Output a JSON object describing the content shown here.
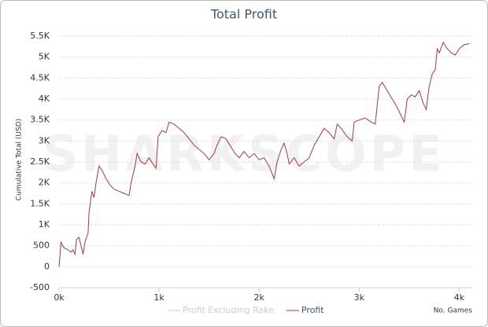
{
  "chart_data": {
    "type": "line",
    "title": "Total Profit",
    "watermark": "SHARKSCOPE",
    "y_label": "Cumulative Total (USD)",
    "x_label": "No. Games",
    "xlim": [
      0,
      4130
    ],
    "ylim": [
      -500,
      5500
    ],
    "xticks": [
      {
        "value": 0,
        "label": "0k"
      },
      {
        "value": 1000,
        "label": "1k"
      },
      {
        "value": 2000,
        "label": "2k"
      },
      {
        "value": 3000,
        "label": "3k"
      },
      {
        "value": 4000,
        "label": "4k"
      }
    ],
    "yticks": [
      -500,
      0,
      500,
      {
        "value": 1000,
        "label": "1K"
      },
      {
        "value": 1500,
        "label": "1.5K"
      },
      {
        "value": 2000,
        "label": "2K"
      },
      {
        "value": 2500,
        "label": "2.5K"
      },
      {
        "value": 3000,
        "label": "3K"
      },
      {
        "value": 3500,
        "label": "3.5K"
      },
      {
        "value": 4000,
        "label": "4K"
      },
      {
        "value": 4500,
        "label": "4.5K"
      },
      {
        "value": 5000,
        "label": "5K"
      },
      {
        "value": 5500,
        "label": "5.5K"
      }
    ],
    "grid": true,
    "x": [
      0,
      20,
      50,
      80,
      120,
      140,
      160,
      175,
      200,
      220,
      240,
      260,
      290,
      300,
      330,
      350,
      370,
      400,
      430,
      470,
      510,
      550,
      600,
      650,
      700,
      720,
      760,
      780,
      820,
      860,
      900,
      940,
      970,
      990,
      1030,
      1070,
      1100,
      1150,
      1200,
      1250,
      1300,
      1350,
      1400,
      1450,
      1500,
      1550,
      1580,
      1620,
      1670,
      1720,
      1760,
      1800,
      1850,
      1900,
      1950,
      2000,
      2050,
      2100,
      2150,
      2180,
      2220,
      2250,
      2280,
      2300,
      2350,
      2400,
      2450,
      2500,
      2550,
      2600,
      2650,
      2700,
      2750,
      2780,
      2820,
      2880,
      2930,
      2950,
      3000,
      3060,
      3120,
      3160,
      3200,
      3230,
      3280,
      3330,
      3380,
      3420,
      3450,
      3480,
      3520,
      3560,
      3600,
      3640,
      3670,
      3700,
      3730,
      3760,
      3780,
      3800,
      3840,
      3880,
      3920,
      3960,
      4000,
      4050,
      4100
    ],
    "series": [
      {
        "name": "Profit Excluding Rake",
        "color": "#cccccc",
        "visible": false
      },
      {
        "name": "Profit",
        "color": "#a33a3a",
        "visible": true,
        "values": [
          0,
          580,
          450,
          420,
          350,
          400,
          300,
          650,
          700,
          500,
          300,
          600,
          800,
          1300,
          1800,
          1650,
          2000,
          2400,
          2300,
          2100,
          1950,
          1850,
          1800,
          1750,
          1700,
          2000,
          2400,
          2700,
          2500,
          2450,
          2600,
          2450,
          2350,
          3100,
          3250,
          3200,
          3450,
          3400,
          3300,
          3200,
          3050,
          2900,
          2800,
          2700,
          2550,
          2700,
          2900,
          3100,
          3050,
          2850,
          2700,
          2600,
          2750,
          2600,
          2700,
          2550,
          2600,
          2400,
          2100,
          2500,
          2800,
          2950,
          2700,
          2450,
          2600,
          2400,
          2500,
          2600,
          2900,
          3100,
          3300,
          3200,
          3050,
          3400,
          3300,
          3100,
          3000,
          3450,
          3500,
          3550,
          3450,
          3400,
          4300,
          4400,
          4200,
          4000,
          3800,
          3600,
          3450,
          4000,
          4100,
          4050,
          4200,
          3900,
          3750,
          4300,
          4600,
          4700,
          5200,
          5100,
          5350,
          5200,
          5100,
          5050,
          5200,
          5300,
          5320
        ]
      }
    ]
  }
}
